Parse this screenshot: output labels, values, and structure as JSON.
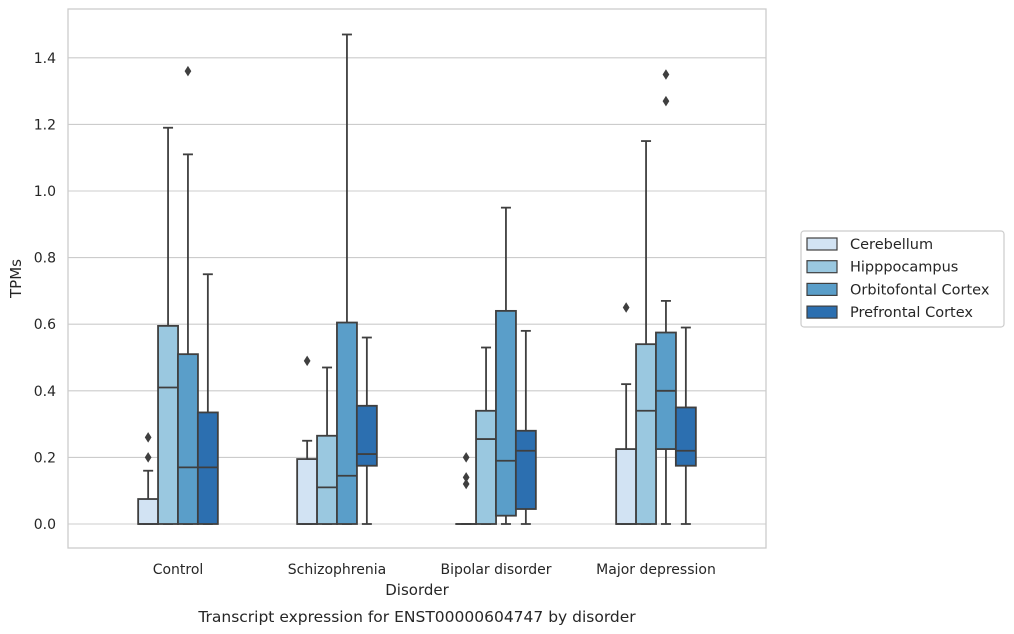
{
  "chart_data": {
    "type": "box",
    "title": "",
    "caption": "Transcript expression for ENST00000604747 by disorder",
    "xlabel": "Disorder",
    "ylabel": "TPMs",
    "ylim": [
      -0.07,
      1.55
    ],
    "yticks": [
      0.0,
      0.2,
      0.4,
      0.6,
      0.8,
      1.0,
      1.2,
      1.4
    ],
    "grid": true,
    "legend_position": "right",
    "categories": [
      "Control",
      "Schizophrenia",
      "Bipolar disorder",
      "Major depression"
    ],
    "series": [
      {
        "name": "Cerebellum",
        "color": "#d2e3f3",
        "boxes": [
          {
            "whislo": 0.0,
            "q1": 0.0,
            "med": 0.0,
            "q3": 0.075,
            "whishi": 0.16,
            "fliers": [
              0.2,
              0.26
            ]
          },
          {
            "whislo": 0.0,
            "q1": 0.0,
            "med": 0.0,
            "q3": 0.195,
            "whishi": 0.25,
            "fliers": [
              0.49
            ]
          },
          {
            "whislo": 0.0,
            "q1": 0.0,
            "med": 0.0,
            "q3": 0.0,
            "whishi": 0.0,
            "fliers": [
              0.12,
              0.14,
              0.2
            ]
          },
          {
            "whislo": 0.0,
            "q1": 0.0,
            "med": 0.0,
            "q3": 0.225,
            "whishi": 0.42,
            "fliers": [
              0.65
            ]
          }
        ]
      },
      {
        "name": "Hipppocampus",
        "color": "#9ac8e0",
        "boxes": [
          {
            "whislo": 0.0,
            "q1": 0.0,
            "med": 0.41,
            "q3": 0.595,
            "whishi": 1.19,
            "fliers": []
          },
          {
            "whislo": 0.0,
            "q1": 0.0,
            "med": 0.11,
            "q3": 0.265,
            "whishi": 0.47,
            "fliers": []
          },
          {
            "whislo": 0.0,
            "q1": 0.0,
            "med": 0.255,
            "q3": 0.34,
            "whishi": 0.53,
            "fliers": []
          },
          {
            "whislo": 0.0,
            "q1": 0.0,
            "med": 0.34,
            "q3": 0.54,
            "whishi": 1.15,
            "fliers": []
          }
        ]
      },
      {
        "name": "Orbitofontal Cortex",
        "color": "#5a9ec9",
        "boxes": [
          {
            "whislo": 0.0,
            "q1": 0.0,
            "med": 0.17,
            "q3": 0.51,
            "whishi": 1.11,
            "fliers": [
              1.36
            ]
          },
          {
            "whislo": 0.0,
            "q1": 0.0,
            "med": 0.145,
            "q3": 0.605,
            "whishi": 1.47,
            "fliers": []
          },
          {
            "whislo": 0.0,
            "q1": 0.025,
            "med": 0.19,
            "q3": 0.64,
            "whishi": 0.95,
            "fliers": []
          },
          {
            "whislo": 0.0,
            "q1": 0.225,
            "med": 0.4,
            "q3": 0.575,
            "whishi": 0.67,
            "fliers": [
              1.27,
              1.35
            ]
          }
        ]
      },
      {
        "name": "Prefrontal Cortex",
        "color": "#2c6fb0",
        "boxes": [
          {
            "whislo": 0.0,
            "q1": 0.0,
            "med": 0.17,
            "q3": 0.335,
            "whishi": 0.75,
            "fliers": []
          },
          {
            "whislo": 0.0,
            "q1": 0.175,
            "med": 0.21,
            "q3": 0.355,
            "whishi": 0.56,
            "fliers": []
          },
          {
            "whislo": 0.0,
            "q1": 0.045,
            "med": 0.22,
            "q3": 0.28,
            "whishi": 0.58,
            "fliers": []
          },
          {
            "whislo": 0.0,
            "q1": 0.175,
            "med": 0.22,
            "q3": 0.35,
            "whishi": 0.59,
            "fliers": []
          }
        ]
      }
    ]
  }
}
